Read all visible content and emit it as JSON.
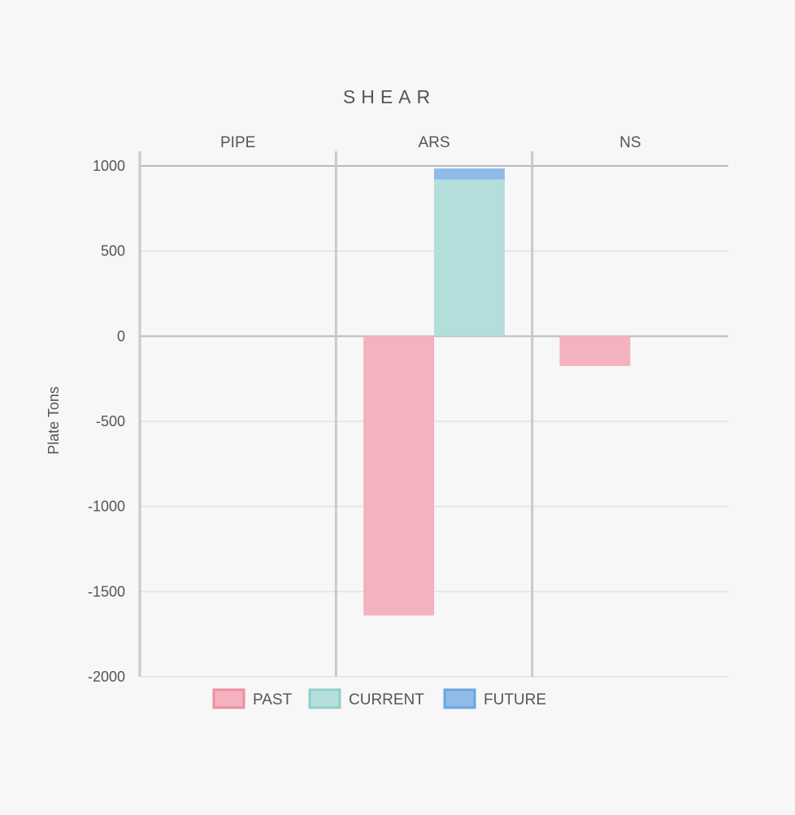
{
  "chart_data": {
    "type": "bar",
    "stacked": true,
    "title": "SHEAR",
    "categories": [
      "PIPE",
      "ARS",
      "NS"
    ],
    "ylabel": "Plate Tons",
    "ylim": [
      -2000,
      1000
    ],
    "yticks": [
      "1000",
      "500",
      "0",
      "-500",
      "-1000",
      "-1500",
      "-2000"
    ],
    "ytick_values": [
      1000,
      500,
      0,
      -500,
      -1000,
      -1500,
      -2000
    ],
    "grid": true,
    "legend_position": "bottom",
    "series": [
      {
        "name": "PAST",
        "values": [
          0,
          -1640,
          -175
        ],
        "color": "#f4b1be",
        "stroke": "#ec8fa2",
        "stack": "a"
      },
      {
        "name": "CURRENT",
        "values": [
          0,
          920,
          0
        ],
        "color": "#b4dedc",
        "stroke": "#8fcfcc",
        "stack": "b"
      },
      {
        "name": "FUTURE",
        "values": [
          0,
          65,
          0
        ],
        "color": "#8fbbe8",
        "stroke": "#6aa6e2",
        "stack": "b"
      }
    ]
  }
}
